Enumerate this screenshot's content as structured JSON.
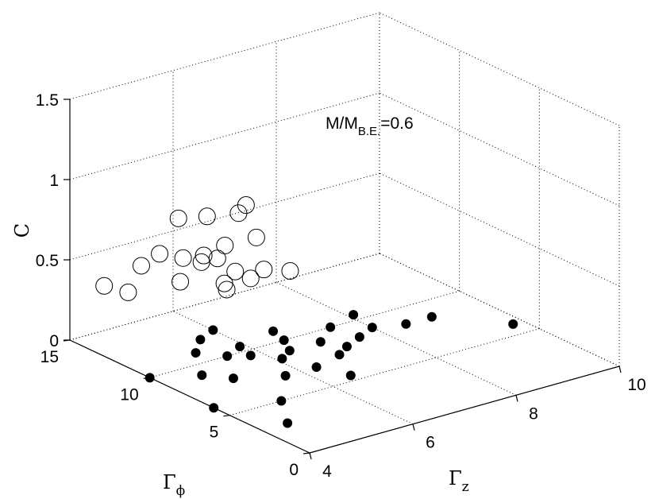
{
  "chart_data": {
    "type": "scatter",
    "title": "",
    "annotation": {
      "main": "M/M",
      "sub": "B.E.",
      "suffix": "=0.6"
    },
    "x": {
      "label": "Γ",
      "label_sub": "z",
      "lim": [
        4,
        10
      ],
      "ticks": [
        "4",
        "6",
        "8",
        "10"
      ]
    },
    "y": {
      "label": "Γ",
      "label_sub": "ϕ",
      "lim": [
        0,
        15
      ],
      "ticks": [
        "0",
        "5",
        "10",
        "15"
      ]
    },
    "z": {
      "label": "C",
      "lim": [
        0,
        1.5
      ],
      "ticks": [
        "0",
        "0.5",
        "1",
        "1.5"
      ]
    },
    "grid": true,
    "series": [
      {
        "marker": "open-circle",
        "points": [
          [
            4.2,
            12.0,
            0.42
          ],
          [
            4.2,
            13.5,
            0.39
          ],
          [
            4.3,
            11.5,
            0.6
          ],
          [
            4.5,
            11.0,
            0.68
          ],
          [
            4.8,
            10.5,
            0.65
          ],
          [
            4.4,
            9.5,
            0.98
          ],
          [
            4.8,
            9.0,
            0.98
          ],
          [
            4.9,
            11.0,
            0.47
          ],
          [
            5.0,
            10.0,
            0.63
          ],
          [
            5.2,
            10.5,
            0.63
          ],
          [
            5.0,
            9.0,
            0.7
          ],
          [
            5.1,
            8.0,
            1.02
          ],
          [
            5.4,
            8.5,
            1.02
          ],
          [
            5.3,
            9.5,
            0.73
          ],
          [
            5.5,
            9.5,
            0.55
          ],
          [
            5.6,
            8.5,
            0.8
          ],
          [
            5.6,
            10.5,
            0.42
          ],
          [
            5.8,
            9.5,
            0.48
          ],
          [
            5.9,
            9.0,
            0.55
          ],
          [
            6.1,
            8.0,
            0.57
          ],
          [
            5.8,
            11.0,
            0.34
          ]
        ]
      },
      {
        "marker": "filled-circle",
        "points": [
          [
            4.0,
            10.0,
            0.0
          ],
          [
            4.0,
            6.0,
            0.0
          ],
          [
            4.5,
            3.0,
            0.0
          ],
          [
            4.7,
            9.0,
            0.0
          ],
          [
            5.0,
            8.0,
            0.0
          ],
          [
            5.0,
            5.0,
            0.0
          ],
          [
            5.2,
            11.0,
            0.0
          ],
          [
            5.5,
            10.0,
            0.0
          ],
          [
            5.6,
            12.0,
            0.0
          ],
          [
            5.7,
            7.0,
            0.0
          ],
          [
            5.8,
            9.5,
            0.0
          ],
          [
            5.9,
            10.5,
            0.0
          ],
          [
            6.0,
            12.5,
            0.0
          ],
          [
            6.1,
            8.5,
            0.0
          ],
          [
            6.3,
            7.0,
            0.0
          ],
          [
            6.4,
            9.0,
            0.0
          ],
          [
            6.5,
            5.5,
            0.0
          ],
          [
            6.6,
            10.0,
            0.0
          ],
          [
            6.7,
            11.0,
            0.0
          ],
          [
            6.9,
            7.5,
            0.0
          ],
          [
            7.0,
            9.0,
            0.0
          ],
          [
            7.2,
            8.0,
            0.0
          ],
          [
            7.5,
            10.0,
            0.0
          ],
          [
            7.6,
            8.5,
            0.0
          ],
          [
            8.0,
            9.0,
            0.0
          ],
          [
            8.1,
            10.5,
            0.0
          ],
          [
            8.5,
            8.5,
            0.0
          ],
          [
            9.0,
            8.5,
            0.0
          ],
          [
            9.8,
            6.0,
            0.0
          ]
        ]
      }
    ]
  }
}
